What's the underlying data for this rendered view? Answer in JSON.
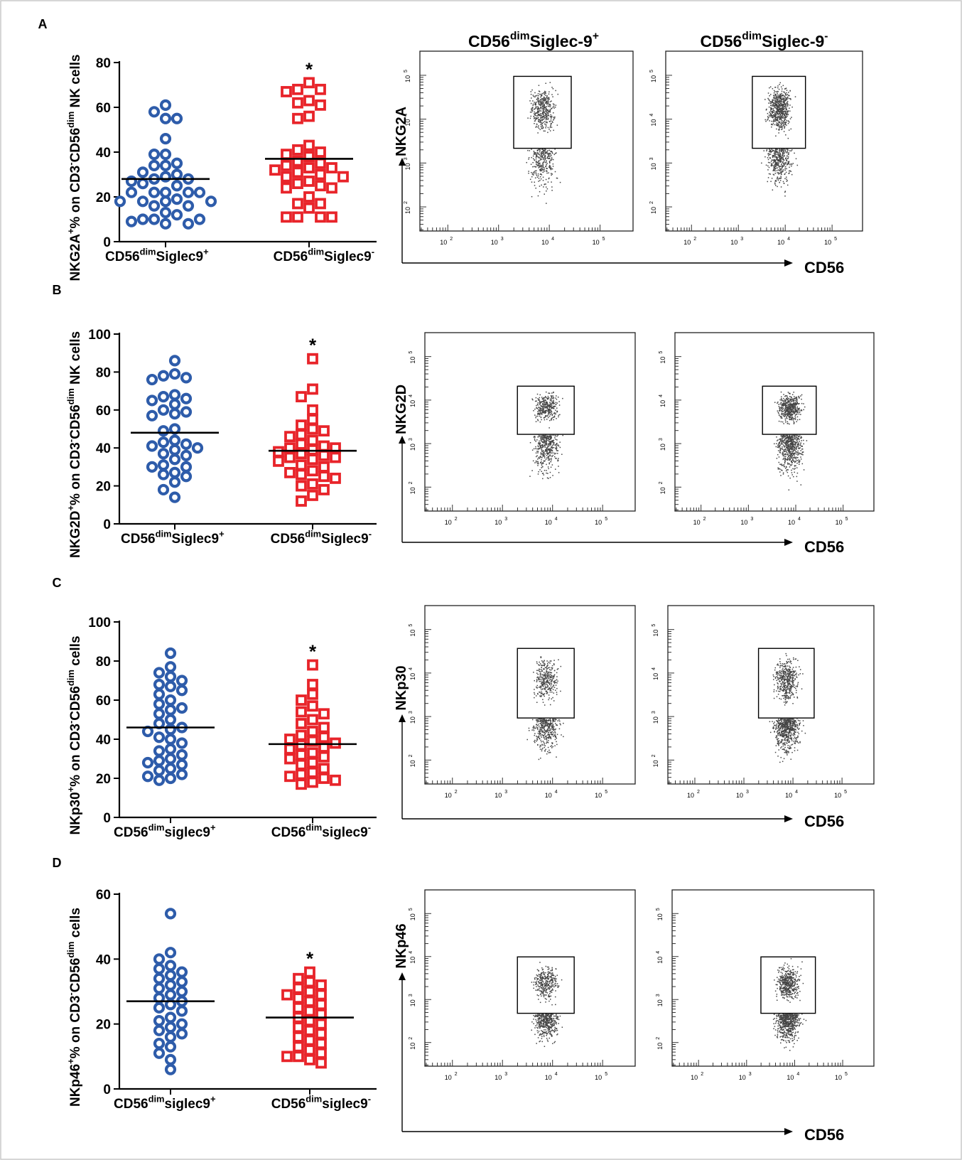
{
  "figure": {
    "star_label": "*",
    "cd56_label": "CD56",
    "decade_labels": [
      "10",
      "10",
      "10",
      "10"
    ],
    "decade_exps": [
      "2",
      "3",
      "4",
      "5"
    ],
    "header": {
      "plus": {
        "base": "CD56",
        "sup": "dim",
        "rest": "Siglec-9",
        "sign": "+"
      },
      "minus": {
        "base": "CD56",
        "sup": "dim",
        "rest": "Siglec-9",
        "sign": "-"
      }
    }
  },
  "colors": {
    "plus_series": "#2e5caa",
    "minus_series": "#e8242a",
    "dots": "#444444"
  },
  "chart_data": [
    {
      "panel": "A",
      "type": "scatter",
      "ylabel": {
        "pre": "NKG2A",
        "pre_sup": "+",
        "mid": "% on CD3",
        "mid_sup": "-",
        "post": "CD56",
        "post_sup": "dim",
        "tail": " NK cells"
      },
      "ylim": [
        0,
        80
      ],
      "yticks": [
        "0",
        "20",
        "40",
        "60",
        "80"
      ],
      "categories": [
        {
          "base": "CD56",
          "sup": "dim",
          "rest": "Siglec9",
          "sign": "+"
        },
        {
          "base": "CD56",
          "sup": "dim",
          "rest": "Siglec9",
          "sign": "-"
        }
      ],
      "series": [
        {
          "marker": "circle",
          "values": [
            61,
            58,
            55,
            55,
            46,
            39,
            39,
            35,
            34,
            34,
            31,
            30,
            29,
            28,
            28,
            27,
            26,
            25,
            22,
            22,
            22,
            22,
            22,
            19,
            18,
            18,
            18,
            18,
            16,
            16,
            13,
            12,
            10,
            10,
            8,
            8,
            9,
            10
          ],
          "mean": 28
        },
        {
          "marker": "square",
          "values": [
            71,
            68,
            68,
            67,
            63,
            62,
            61,
            56,
            55,
            43,
            41,
            40,
            39,
            38,
            36,
            35,
            34,
            33,
            33,
            32,
            31,
            30,
            29,
            29,
            27,
            26,
            25,
            24,
            24,
            20,
            17,
            17,
            15,
            11,
            11,
            11,
            11
          ],
          "mean": 37,
          "star": true
        }
      ],
      "flow": {
        "marker_label": "NKG2A",
        "show_header": true
      }
    },
    {
      "panel": "B",
      "type": "scatter",
      "ylabel": {
        "pre": "NKG2D",
        "pre_sup": "+",
        "mid": "% on CD3",
        "mid_sup": "-",
        "post": "CD56",
        "post_sup": "dim",
        "tail": " NK cells"
      },
      "ylim": [
        0,
        100
      ],
      "yticks": [
        "0",
        "20",
        "40",
        "60",
        "80",
        "100"
      ],
      "categories": [
        {
          "base": "CD56",
          "sup": "dim",
          "rest": "Siglec9",
          "sign": "+"
        },
        {
          "base": "CD56",
          "sup": "dim",
          "rest": "Siglec9",
          "sign": "-"
        }
      ],
      "series": [
        {
          "marker": "circle",
          "values": [
            86,
            79,
            78,
            77,
            76,
            68,
            67,
            66,
            65,
            63,
            60,
            59,
            58,
            57,
            50,
            49,
            44,
            43,
            42,
            41,
            40,
            39,
            37,
            36,
            34,
            31,
            30,
            30,
            27,
            26,
            25,
            22,
            18,
            14
          ],
          "mean": 48
        },
        {
          "marker": "square",
          "values": [
            87,
            71,
            67,
            60,
            55,
            52,
            50,
            49,
            47,
            46,
            44,
            42,
            41,
            40,
            40,
            39,
            38,
            37,
            36,
            35,
            35,
            34,
            33,
            31,
            30,
            28,
            27,
            26,
            25,
            24,
            21,
            20,
            18,
            15,
            12
          ],
          "mean": 38.5,
          "star": true
        }
      ],
      "flow": {
        "marker_label": "NKG2D",
        "show_header": false
      }
    },
    {
      "panel": "C",
      "type": "scatter",
      "ylabel": {
        "pre": "NKp30",
        "pre_sup": "+",
        "mid": "% on CD3",
        "mid_sup": "-",
        "post": "CD56",
        "post_sup": "dim",
        "tail": " cells"
      },
      "ylim": [
        0,
        100
      ],
      "yticks": [
        "0",
        "20",
        "40",
        "60",
        "80",
        "100"
      ],
      "categories": [
        {
          "base": "CD56",
          "sup": "dim",
          "rest": "siglec9",
          "sign": "+"
        },
        {
          "base": "CD56",
          "sup": "dim",
          "rest": "siglec9",
          "sign": "-"
        }
      ],
      "series": [
        {
          "marker": "circle",
          "values": [
            84,
            77,
            74,
            72,
            70,
            68,
            67,
            65,
            63,
            60,
            58,
            56,
            55,
            53,
            50,
            48,
            46,
            45,
            44,
            41,
            40,
            38,
            35,
            34,
            32,
            30,
            29,
            28,
            27,
            25,
            24,
            22,
            21,
            20,
            19
          ],
          "mean": 46
        },
        {
          "marker": "square",
          "values": [
            78,
            68,
            63,
            60,
            57,
            54,
            53,
            50,
            48,
            46,
            44,
            42,
            41,
            40,
            39,
            38,
            37,
            36,
            35,
            33,
            32,
            31,
            30,
            28,
            27,
            25,
            23,
            22,
            21,
            20,
            19,
            18,
            17
          ],
          "mean": 37.5,
          "star": true
        }
      ],
      "flow": {
        "marker_label": "NKp30",
        "show_header": false
      }
    },
    {
      "panel": "D",
      "type": "scatter",
      "ylabel": {
        "pre": "NKp46",
        "pre_sup": "+",
        "mid": "% on CD3",
        "mid_sup": "-",
        "post": "CD56",
        "post_sup": "dim",
        "tail": " cells"
      },
      "ylim": [
        0,
        60
      ],
      "yticks": [
        "0",
        "20",
        "40",
        "60"
      ],
      "categories": [
        {
          "base": "CD56",
          "sup": "dim",
          "rest": "siglec9",
          "sign": "+"
        },
        {
          "base": "CD56",
          "sup": "dim",
          "rest": "siglec9",
          "sign": "-"
        }
      ],
      "series": [
        {
          "marker": "circle",
          "values": [
            54,
            42,
            40,
            38,
            37,
            36,
            35,
            34,
            33,
            32,
            31,
            30,
            29,
            28,
            27,
            26,
            25,
            24,
            22,
            21,
            20,
            19,
            18,
            17,
            16,
            14,
            13,
            11,
            9,
            6
          ],
          "mean": 27
        },
        {
          "marker": "square",
          "values": [
            36,
            34,
            33,
            32,
            31,
            30,
            29,
            29,
            28,
            27,
            26,
            25,
            24,
            23,
            22,
            21,
            20,
            19,
            18,
            17,
            16,
            15,
            14,
            13,
            12,
            11,
            10,
            10,
            9,
            8
          ],
          "mean": 22,
          "star": true
        }
      ],
      "flow": {
        "marker_label": "NKp46",
        "show_header": false
      }
    }
  ]
}
